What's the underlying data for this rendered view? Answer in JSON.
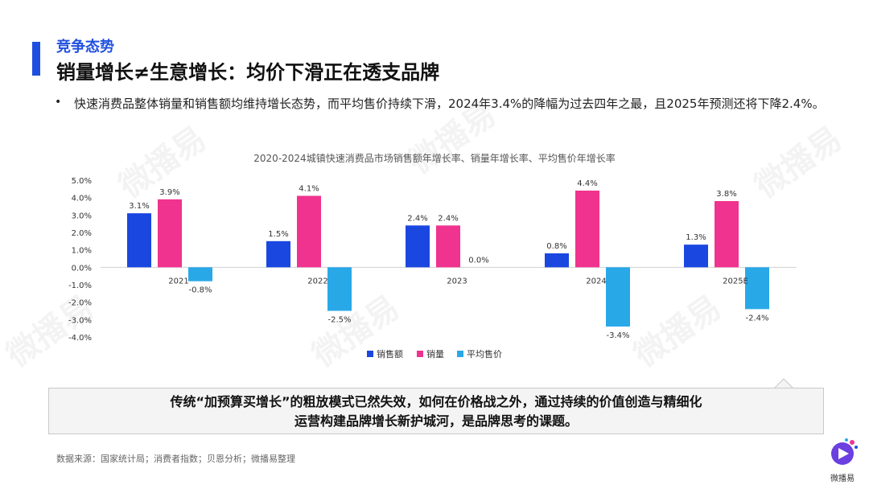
{
  "section_label": "竞争态势",
  "headline": "销量增长≠生意增长：均价下滑正在透支品牌",
  "bullet": "快速消费品整体销量和销售额均维持增长态势，而平均售价持续下滑，2024年3.4%的降幅为过去四年之最，且2025年预测还将下降2.4%。",
  "callout": {
    "line1": "传统“加预算买增长”的粗放模式已然失效，如何在价格战之外，通过持续的价值创造与精细化",
    "line2": "运营构建品牌增长新护城河，是品牌思考的课题。"
  },
  "source": "数据来源：国家统计局；消费者指数；贝恩分析；微播易整理",
  "logo_text": "微播易",
  "watermark_text": "微播易",
  "colors": {
    "accent": "#1f4fe0",
    "sales_value": "#1a47e0",
    "sales_volume": "#f0338e",
    "avg_price": "#29a8e8"
  },
  "chart_data": {
    "type": "bar",
    "title": "2020-2024城镇快速消费品市场销售额年增长率、销量年增长率、平均售价年增长率",
    "categories": [
      "2021",
      "2022",
      "2023",
      "2024",
      "2025E"
    ],
    "series": [
      {
        "name": "销售额",
        "color": "#1a47e0",
        "values": [
          3.1,
          1.5,
          2.4,
          0.8,
          1.3
        ],
        "labels": [
          "3.1%",
          "1.5%",
          "2.4%",
          "0.8%",
          "1.3%"
        ]
      },
      {
        "name": "销量",
        "color": "#f0338e",
        "values": [
          3.9,
          4.1,
          2.4,
          4.4,
          3.8
        ],
        "labels": [
          "3.9%",
          "4.1%",
          "2.4%",
          "4.4%",
          "3.8%"
        ]
      },
      {
        "name": "平均售价",
        "color": "#29a8e8",
        "values": [
          -0.8,
          -2.5,
          0.0,
          -3.4,
          -2.4
        ],
        "labels": [
          "-0.8%",
          "-2.5%",
          "0.0%",
          "-3.4%",
          "-2.4%"
        ]
      }
    ],
    "y_ticks": [
      "5.0%",
      "4.0%",
      "3.0%",
      "2.0%",
      "1.0%",
      "0.0%",
      "-1.0%",
      "-2.0%",
      "-3.0%",
      "-4.0%"
    ],
    "ylim": [
      -4.0,
      5.0
    ],
    "grid": false,
    "legend": "bottom"
  }
}
